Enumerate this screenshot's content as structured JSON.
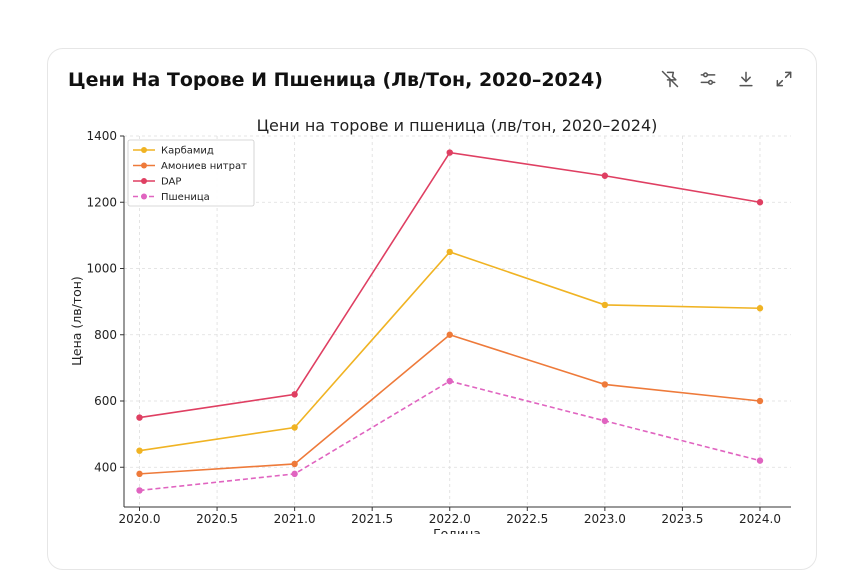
{
  "card": {
    "title": "Цени На Торове И Пшеница (Лв/Тон, 2020–2024)"
  },
  "toolbar": {
    "icons": [
      "pin-off-icon",
      "sliders-icon",
      "download-icon",
      "expand-icon"
    ]
  },
  "chart_data": {
    "type": "line",
    "title": "Цени на торове и пшеница (лв/тон, 2020–2024)",
    "xlabel": "Година",
    "ylabel": "Цена (лв/тон)",
    "x": [
      2020,
      2021,
      2022,
      2023,
      2024
    ],
    "xlim": [
      2019.9,
      2024.2
    ],
    "ylim": [
      280,
      1400
    ],
    "xticks": [
      2020.0,
      2020.5,
      2021.0,
      2021.5,
      2022.0,
      2022.5,
      2023.0,
      2023.5,
      2024.0
    ],
    "xtick_labels": [
      "2020.0",
      "2020.5",
      "2021.0",
      "2021.5",
      "2022.0",
      "2022.5",
      "2023.0",
      "2023.5",
      "2024.0"
    ],
    "yticks": [
      400,
      600,
      800,
      1000,
      1200,
      1400
    ],
    "ytick_labels": [
      "400",
      "600",
      "800",
      "1000",
      "1200",
      "1400"
    ],
    "grid": true,
    "legend_position": "top-left",
    "series": [
      {
        "name": "Карбамид",
        "values": [
          450,
          520,
          1050,
          890,
          880
        ],
        "color": "#f0b323",
        "dash": false
      },
      {
        "name": "Амониев нитрат",
        "values": [
          380,
          410,
          800,
          650,
          600
        ],
        "color": "#ee7a3a",
        "dash": false
      },
      {
        "name": "DAP",
        "values": [
          550,
          620,
          1350,
          1280,
          1200
        ],
        "color": "#df3f62",
        "dash": false
      },
      {
        "name": "Пшеница",
        "values": [
          330,
          380,
          660,
          540,
          420
        ],
        "color": "#e064c0",
        "dash": true
      }
    ]
  }
}
